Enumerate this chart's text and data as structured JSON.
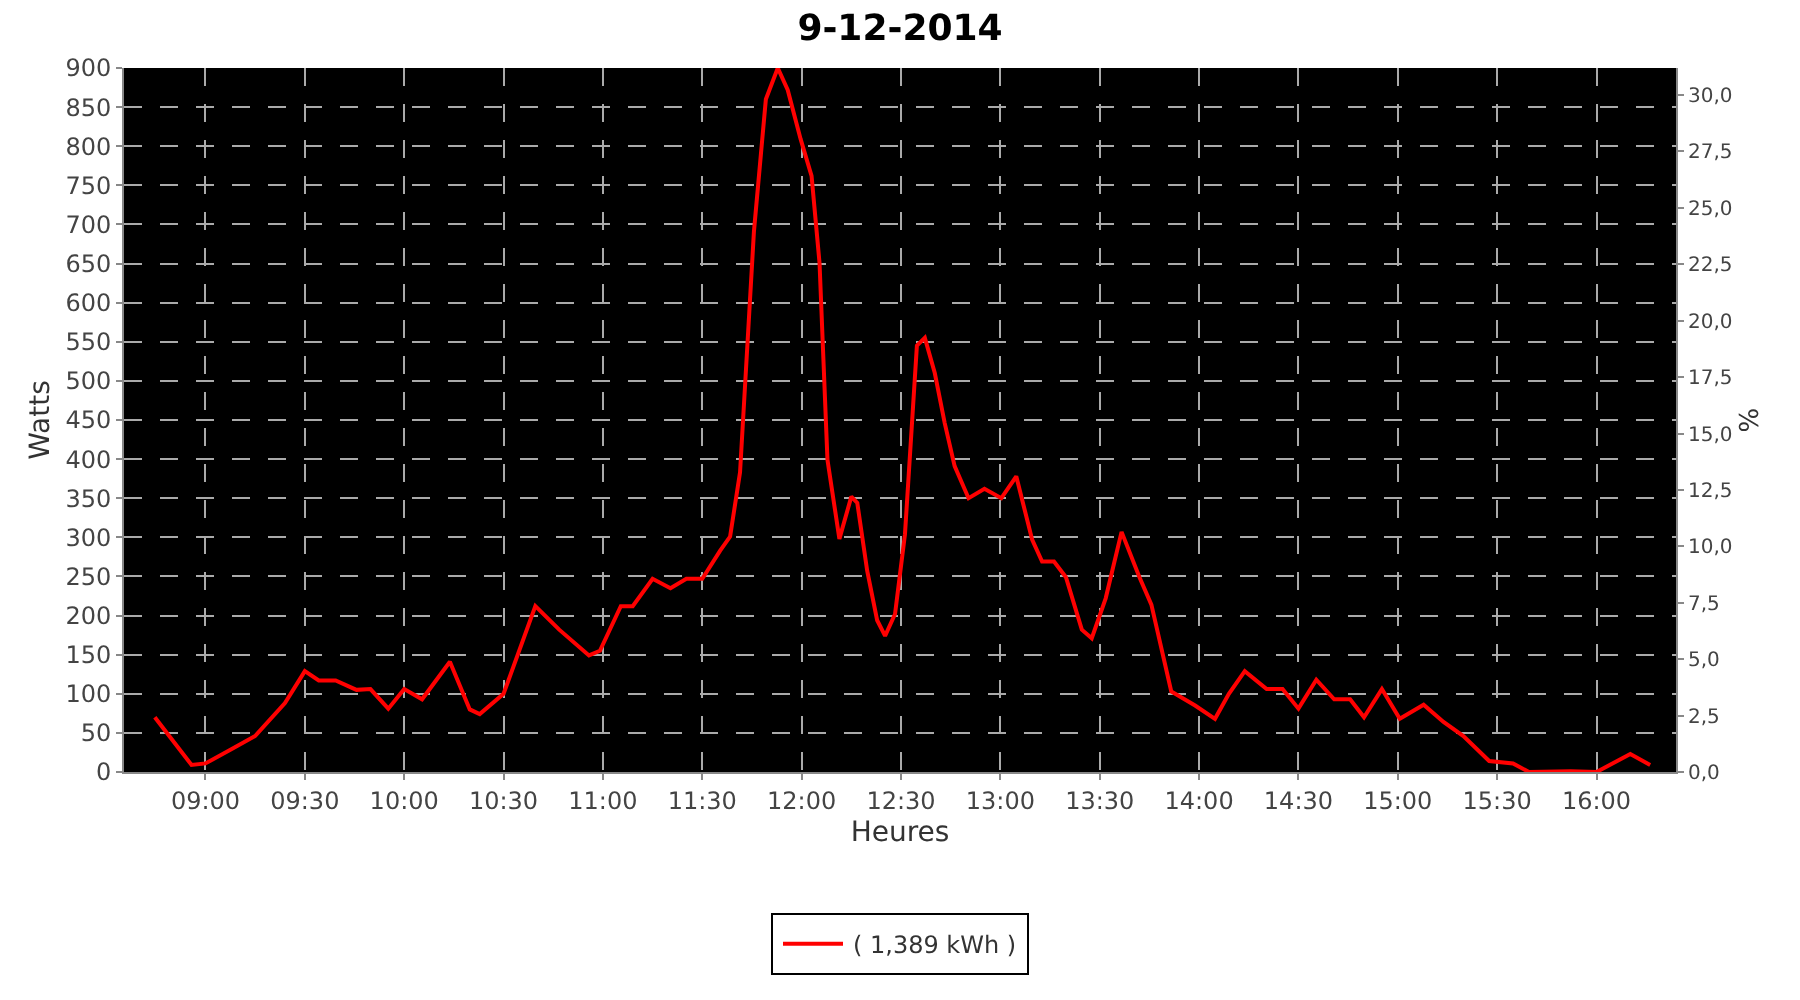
{
  "chart_data": {
    "type": "line",
    "title": "9-12-2014",
    "xlabel": "Heures",
    "ylabel": "Watts",
    "y2label": "%",
    "x": [
      8.745,
      8.93,
      9.0,
      9.13,
      9.25,
      9.4,
      9.5,
      9.57,
      9.655,
      9.76,
      9.83,
      9.92,
      10.0,
      10.09,
      10.23,
      10.33,
      10.38,
      10.5,
      10.66,
      10.78,
      10.93,
      10.985,
      11.09,
      11.15,
      11.25,
      11.34,
      11.42,
      11.5,
      11.59,
      11.64,
      11.69,
      11.76,
      11.82,
      11.88,
      11.93,
      11.995,
      12.05,
      12.09,
      12.13,
      12.19,
      12.25,
      12.28,
      12.33,
      12.38,
      12.42,
      12.47,
      12.52,
      12.58,
      12.62,
      12.67,
      12.72,
      12.77,
      12.84,
      12.92,
      13.005,
      13.08,
      13.16,
      13.21,
      13.27,
      13.33,
      13.41,
      13.46,
      13.53,
      13.61,
      13.7,
      13.76,
      13.86,
      13.98,
      14.08,
      14.15,
      14.23,
      14.34,
      14.42,
      14.5,
      14.59,
      14.68,
      14.76,
      14.83,
      14.92,
      15.01,
      15.13,
      15.23,
      15.33,
      15.46,
      15.58,
      15.66,
      15.87,
      16.0,
      16.17,
      16.27
    ],
    "series": [
      {
        "name": "( 1,389 kWh )",
        "color": "#ff0000",
        "values": [
          70,
          9,
          11,
          29,
          46,
          88,
          129,
          117,
          117,
          105,
          106,
          81,
          106,
          93,
          141,
          80,
          74,
          100,
          212,
          182,
          149,
          155,
          212,
          212,
          247,
          235,
          247,
          247,
          283,
          301,
          383,
          691,
          860,
          900,
          872,
          809,
          762,
          651,
          399,
          298,
          352,
          344,
          257,
          194,
          174,
          202,
          304,
          545,
          555,
          510,
          446,
          391,
          350,
          362,
          350,
          378,
          297,
          269,
          269,
          249,
          182,
          171,
          222,
          307,
          249,
          214,
          103,
          85,
          68,
          100,
          129,
          106,
          106,
          81,
          118,
          93,
          93,
          70,
          106,
          68,
          86,
          64,
          46,
          14,
          11,
          0,
          1,
          0,
          23,
          9
        ]
      }
    ],
    "xlim": [
      8.59,
      16.4
    ],
    "xticks": [
      {
        "value": 9,
        "label": "09:00"
      },
      {
        "value": 9.5,
        "label": "09:30"
      },
      {
        "value": 10,
        "label": "10:00"
      },
      {
        "value": 10.5,
        "label": "10:30"
      },
      {
        "value": 11,
        "label": "11:00"
      },
      {
        "value": 11.5,
        "label": "11:30"
      },
      {
        "value": 12,
        "label": "12:00"
      },
      {
        "value": 12.5,
        "label": "12:30"
      },
      {
        "value": 13,
        "label": "13:00"
      },
      {
        "value": 13.5,
        "label": "13:30"
      },
      {
        "value": 14,
        "label": "14:00"
      },
      {
        "value": 14.5,
        "label": "14:30"
      },
      {
        "value": 15,
        "label": "15:00"
      },
      {
        "value": 15.5,
        "label": "15:30"
      },
      {
        "value": 16,
        "label": "16:00"
      }
    ],
    "ylim": [
      0,
      900
    ],
    "yticks": [
      0,
      50,
      100,
      150,
      200,
      250,
      300,
      350,
      400,
      450,
      500,
      550,
      600,
      650,
      700,
      750,
      800,
      850,
      900
    ],
    "y2lim": [
      0,
      31.2
    ],
    "y2ticks": [
      {
        "value": 0,
        "label": "0,0"
      },
      {
        "value": 2.5,
        "label": "2,5"
      },
      {
        "value": 5,
        "label": "5,0"
      },
      {
        "value": 7.5,
        "label": "7,5"
      },
      {
        "value": 10,
        "label": "10,0"
      },
      {
        "value": 12.5,
        "label": "12,5"
      },
      {
        "value": 15,
        "label": "15,0"
      },
      {
        "value": 17.5,
        "label": "17,5"
      },
      {
        "value": 20,
        "label": "20,0"
      },
      {
        "value": 22.5,
        "label": "22,5"
      },
      {
        "value": 25,
        "label": "25,0"
      },
      {
        "value": 27.5,
        "label": "27,5"
      },
      {
        "value": 30,
        "label": "30,0"
      }
    ],
    "grid": true,
    "legend": "bottom",
    "marker": "none",
    "line_style": "solid"
  }
}
